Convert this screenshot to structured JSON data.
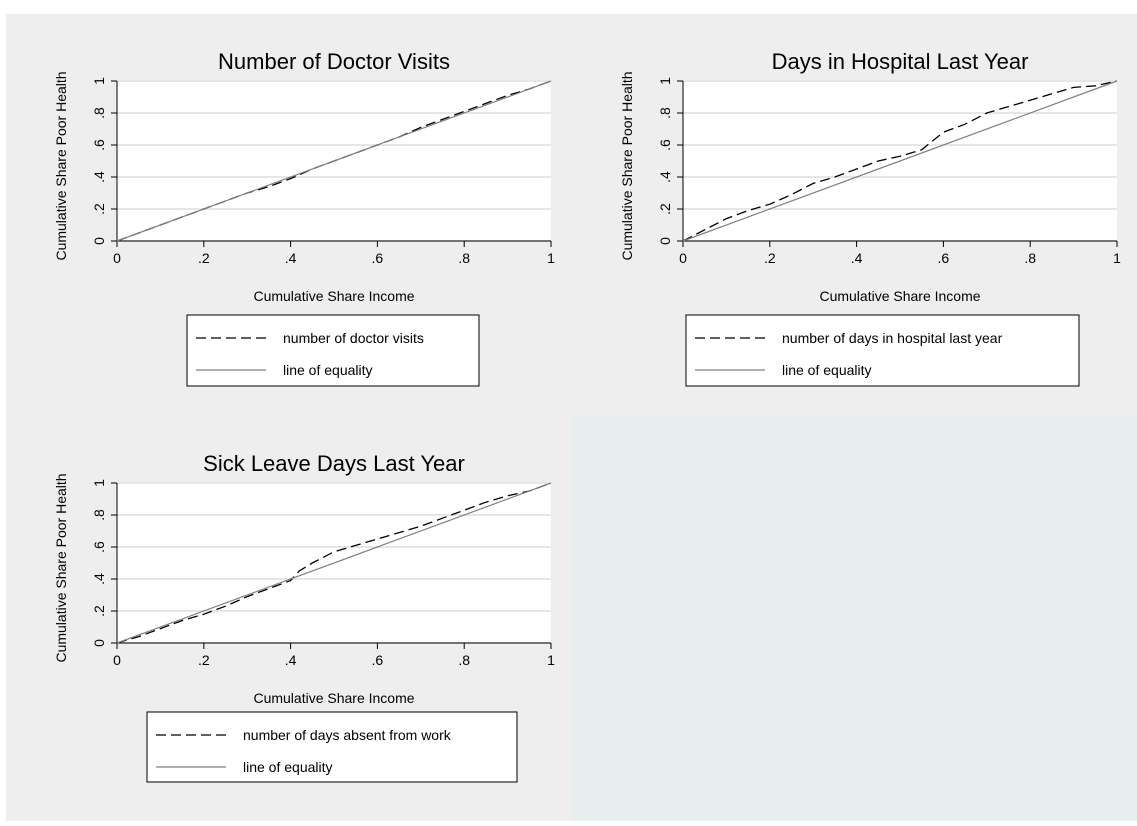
{
  "chart_data": [
    {
      "type": "line",
      "title": "Number of Doctor Visits",
      "xlabel": "Cumulative Share Income",
      "ylabel": "Cumulative Share Poor Health",
      "xlim": [
        0,
        1
      ],
      "ylim": [
        0,
        1
      ],
      "xticks": [
        "0",
        ".2",
        ".4",
        ".6",
        ".8",
        "1"
      ],
      "yticks": [
        "0",
        ".2",
        ".4",
        ".6",
        ".8",
        "1"
      ],
      "grid": true,
      "legend_position": "below",
      "series": [
        {
          "name": "number of doctor visits",
          "style": "dashed",
          "color": "#000000",
          "x": [
            0,
            0.05,
            0.1,
            0.15,
            0.2,
            0.25,
            0.3,
            0.35,
            0.4,
            0.45,
            0.5,
            0.55,
            0.6,
            0.65,
            0.7,
            0.75,
            0.8,
            0.85,
            0.9,
            0.95,
            1
          ],
          "y": [
            0,
            0.05,
            0.1,
            0.15,
            0.2,
            0.25,
            0.3,
            0.34,
            0.39,
            0.45,
            0.5,
            0.55,
            0.6,
            0.65,
            0.71,
            0.76,
            0.81,
            0.86,
            0.91,
            0.95,
            1
          ]
        },
        {
          "name": "line of equality",
          "style": "solid",
          "color": "#808080",
          "x": [
            0,
            1
          ],
          "y": [
            0,
            1
          ]
        }
      ]
    },
    {
      "type": "line",
      "title": "Days in Hospital Last Year",
      "xlabel": "Cumulative Share Income",
      "ylabel": "Cumulative Share Poor Health",
      "xlim": [
        0,
        1
      ],
      "ylim": [
        0,
        1
      ],
      "xticks": [
        "0",
        ".2",
        ".4",
        ".6",
        ".8",
        "1"
      ],
      "yticks": [
        "0",
        ".2",
        ".4",
        ".6",
        ".8",
        "1"
      ],
      "grid": true,
      "legend_position": "below",
      "series": [
        {
          "name": "number of days in hospital last year",
          "style": "dashed",
          "color": "#000000",
          "x": [
            0,
            0.05,
            0.1,
            0.15,
            0.2,
            0.25,
            0.3,
            0.35,
            0.4,
            0.45,
            0.5,
            0.55,
            0.6,
            0.65,
            0.7,
            0.75,
            0.8,
            0.85,
            0.9,
            0.95,
            1
          ],
          "y": [
            0,
            0.07,
            0.14,
            0.19,
            0.23,
            0.29,
            0.36,
            0.4,
            0.45,
            0.5,
            0.53,
            0.57,
            0.68,
            0.73,
            0.8,
            0.84,
            0.88,
            0.92,
            0.96,
            0.97,
            1
          ]
        },
        {
          "name": "line of equality",
          "style": "solid",
          "color": "#808080",
          "x": [
            0,
            1
          ],
          "y": [
            0,
            1
          ]
        }
      ]
    },
    {
      "type": "line",
      "title": "Sick Leave Days Last Year",
      "xlabel": "Cumulative Share Income",
      "ylabel": "Cumulative Share Poor Health",
      "xlim": [
        0,
        1
      ],
      "ylim": [
        0,
        1
      ],
      "xticks": [
        "0",
        ".2",
        ".4",
        ".6",
        ".8",
        "1"
      ],
      "yticks": [
        "0",
        ".2",
        ".4",
        ".6",
        ".8",
        "1"
      ],
      "grid": true,
      "legend_position": "below",
      "series": [
        {
          "name": "number of days absent from work",
          "style": "dashed",
          "color": "#000000",
          "x": [
            0,
            0.05,
            0.1,
            0.15,
            0.2,
            0.25,
            0.3,
            0.35,
            0.4,
            0.42,
            0.45,
            0.5,
            0.55,
            0.6,
            0.65,
            0.7,
            0.75,
            0.8,
            0.85,
            0.9,
            0.95,
            1
          ],
          "y": [
            0,
            0.04,
            0.09,
            0.14,
            0.18,
            0.23,
            0.29,
            0.34,
            0.39,
            0.45,
            0.5,
            0.57,
            0.61,
            0.65,
            0.69,
            0.73,
            0.78,
            0.83,
            0.88,
            0.92,
            0.95,
            1
          ]
        },
        {
          "name": "line of equality",
          "style": "solid",
          "color": "#808080",
          "x": [
            0,
            1
          ],
          "y": [
            0,
            1
          ]
        }
      ]
    }
  ]
}
